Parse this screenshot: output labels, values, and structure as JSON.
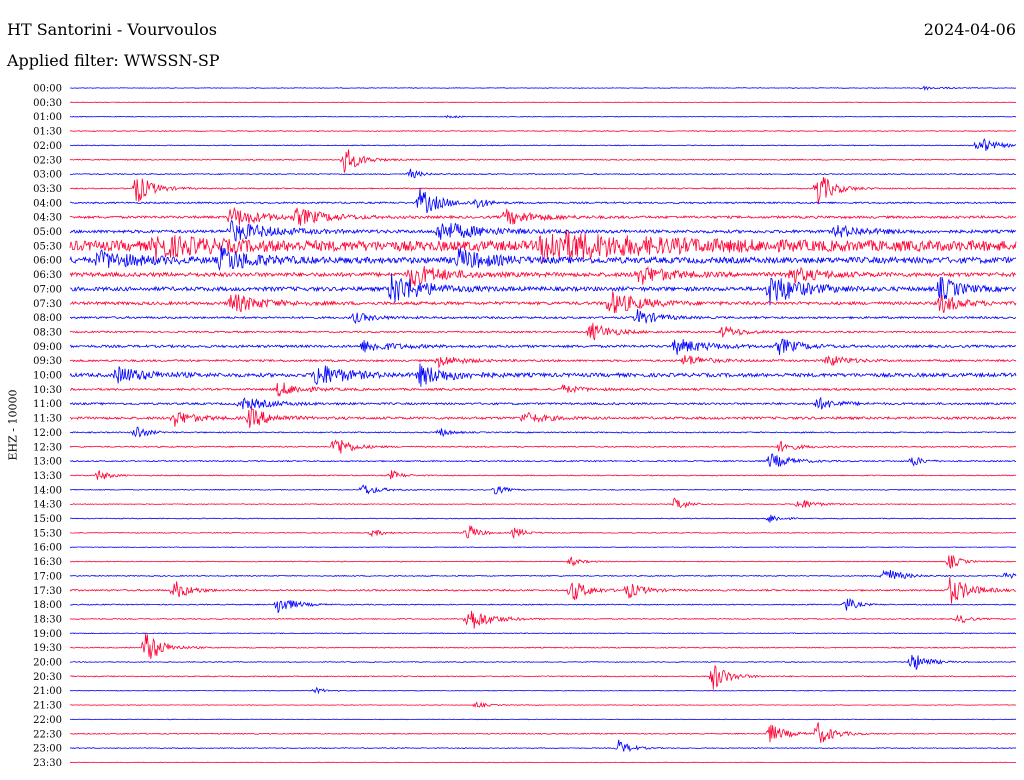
{
  "header": {
    "title": "HT Santorini - Vourvoulos",
    "date": "2024-04-06",
    "filter": "Applied filter: WWSSN-SP"
  },
  "chart_data": {
    "type": "line",
    "title": "HT Santorini - Vourvoulos",
    "ylabel": "EHZ - 10000",
    "colors": {
      "odd": "#0000ff",
      "even": "#ff0033"
    },
    "rows": [
      {
        "label": "00:00",
        "noise": 0.3,
        "events": [
          {
            "x": 0.9,
            "a": 2,
            "w": 0.02
          }
        ]
      },
      {
        "label": "00:30",
        "noise": 0.3,
        "events": []
      },
      {
        "label": "01:00",
        "noise": 0.3,
        "events": [
          {
            "x": 0.4,
            "a": 1.5,
            "w": 0.01
          }
        ]
      },
      {
        "label": "01:30",
        "noise": 0.4,
        "events": []
      },
      {
        "label": "02:00",
        "noise": 0.4,
        "events": [
          {
            "x": 0.96,
            "a": 10,
            "w": 0.015
          }
        ]
      },
      {
        "label": "02:30",
        "noise": 0.5,
        "events": [
          {
            "x": 0.29,
            "a": 14,
            "w": 0.015
          }
        ]
      },
      {
        "label": "03:00",
        "noise": 0.5,
        "events": [
          {
            "x": 0.36,
            "a": 5,
            "w": 0.01
          }
        ]
      },
      {
        "label": "03:30",
        "noise": 0.6,
        "events": [
          {
            "x": 0.07,
            "a": 16,
            "w": 0.015
          },
          {
            "x": 0.79,
            "a": 18,
            "w": 0.015
          }
        ]
      },
      {
        "label": "04:00",
        "noise": 0.8,
        "events": [
          {
            "x": 0.37,
            "a": 14,
            "w": 0.02
          },
          {
            "x": 0.43,
            "a": 6,
            "w": 0.01
          }
        ]
      },
      {
        "label": "04:30",
        "noise": 1.2,
        "events": [
          {
            "x": 0.17,
            "a": 10,
            "w": 0.03
          },
          {
            "x": 0.24,
            "a": 8,
            "w": 0.03
          },
          {
            "x": 0.46,
            "a": 8,
            "w": 0.03
          }
        ]
      },
      {
        "label": "05:00",
        "noise": 1.5,
        "events": [
          {
            "x": 0.17,
            "a": 10,
            "w": 0.04
          },
          {
            "x": 0.39,
            "a": 10,
            "w": 0.04
          },
          {
            "x": 0.81,
            "a": 6,
            "w": 0.03
          }
        ]
      },
      {
        "label": "05:30",
        "noise": 5,
        "events": [
          {
            "x": 0.09,
            "a": 10,
            "w": 0.05
          },
          {
            "x": 0.5,
            "a": 14,
            "w": 0.1
          }
        ]
      },
      {
        "label": "06:00",
        "noise": 3,
        "events": [
          {
            "x": 0.03,
            "a": 8,
            "w": 0.04
          },
          {
            "x": 0.16,
            "a": 12,
            "w": 0.03
          },
          {
            "x": 0.41,
            "a": 10,
            "w": 0.03
          }
        ]
      },
      {
        "label": "06:30",
        "noise": 2,
        "events": [
          {
            "x": 0.36,
            "a": 12,
            "w": 0.03
          },
          {
            "x": 0.6,
            "a": 10,
            "w": 0.03
          },
          {
            "x": 0.76,
            "a": 8,
            "w": 0.03
          }
        ]
      },
      {
        "label": "07:00",
        "noise": 2,
        "events": [
          {
            "x": 0.34,
            "a": 16,
            "w": 0.03
          },
          {
            "x": 0.74,
            "a": 16,
            "w": 0.03
          },
          {
            "x": 0.92,
            "a": 12,
            "w": 0.02
          }
        ]
      },
      {
        "label": "07:30",
        "noise": 1.5,
        "events": [
          {
            "x": 0.17,
            "a": 10,
            "w": 0.03
          },
          {
            "x": 0.57,
            "a": 12,
            "w": 0.03
          },
          {
            "x": 0.92,
            "a": 10,
            "w": 0.02
          }
        ]
      },
      {
        "label": "08:00",
        "noise": 1,
        "events": [
          {
            "x": 0.3,
            "a": 5,
            "w": 0.02
          },
          {
            "x": 0.6,
            "a": 8,
            "w": 0.02
          }
        ]
      },
      {
        "label": "08:30",
        "noise": 0.8,
        "events": [
          {
            "x": 0.55,
            "a": 10,
            "w": 0.02
          },
          {
            "x": 0.69,
            "a": 6,
            "w": 0.02
          }
        ]
      },
      {
        "label": "09:00",
        "noise": 1.2,
        "events": [
          {
            "x": 0.31,
            "a": 6,
            "w": 0.03
          },
          {
            "x": 0.64,
            "a": 8,
            "w": 0.03
          },
          {
            "x": 0.75,
            "a": 8,
            "w": 0.02
          }
        ]
      },
      {
        "label": "09:30",
        "noise": 1,
        "events": [
          {
            "x": 0.39,
            "a": 6,
            "w": 0.02
          },
          {
            "x": 0.65,
            "a": 6,
            "w": 0.02
          },
          {
            "x": 0.8,
            "a": 6,
            "w": 0.02
          }
        ]
      },
      {
        "label": "10:00",
        "noise": 1.8,
        "events": [
          {
            "x": 0.26,
            "a": 12,
            "w": 0.03
          },
          {
            "x": 0.37,
            "a": 10,
            "w": 0.03
          },
          {
            "x": 0.05,
            "a": 8,
            "w": 0.03
          }
        ]
      },
      {
        "label": "10:30",
        "noise": 1,
        "events": [
          {
            "x": 0.22,
            "a": 8,
            "w": 0.02
          },
          {
            "x": 0.52,
            "a": 4,
            "w": 0.02
          }
        ]
      },
      {
        "label": "11:00",
        "noise": 1,
        "events": [
          {
            "x": 0.18,
            "a": 6,
            "w": 0.03
          },
          {
            "x": 0.79,
            "a": 6,
            "w": 0.02
          }
        ]
      },
      {
        "label": "11:30",
        "noise": 1.2,
        "events": [
          {
            "x": 0.11,
            "a": 8,
            "w": 0.02
          },
          {
            "x": 0.19,
            "a": 10,
            "w": 0.02
          },
          {
            "x": 0.48,
            "a": 6,
            "w": 0.02
          }
        ]
      },
      {
        "label": "12:00",
        "noise": 0.6,
        "events": [
          {
            "x": 0.07,
            "a": 8,
            "w": 0.01
          },
          {
            "x": 0.39,
            "a": 5,
            "w": 0.01
          }
        ]
      },
      {
        "label": "12:30",
        "noise": 0.6,
        "events": [
          {
            "x": 0.28,
            "a": 12,
            "w": 0.015
          },
          {
            "x": 0.75,
            "a": 6,
            "w": 0.015
          }
        ]
      },
      {
        "label": "13:00",
        "noise": 0.6,
        "events": [
          {
            "x": 0.74,
            "a": 8,
            "w": 0.02
          },
          {
            "x": 0.89,
            "a": 6,
            "w": 0.01
          }
        ]
      },
      {
        "label": "13:30",
        "noise": 0.5,
        "events": [
          {
            "x": 0.03,
            "a": 6,
            "w": 0.01
          },
          {
            "x": 0.34,
            "a": 5,
            "w": 0.01
          }
        ]
      },
      {
        "label": "14:00",
        "noise": 0.4,
        "events": [
          {
            "x": 0.31,
            "a": 6,
            "w": 0.015
          },
          {
            "x": 0.45,
            "a": 5,
            "w": 0.01
          }
        ]
      },
      {
        "label": "14:30",
        "noise": 0.4,
        "events": [
          {
            "x": 0.64,
            "a": 8,
            "w": 0.01
          },
          {
            "x": 0.77,
            "a": 6,
            "w": 0.015
          }
        ]
      },
      {
        "label": "15:00",
        "noise": 0.4,
        "events": [
          {
            "x": 0.74,
            "a": 5,
            "w": 0.01
          }
        ]
      },
      {
        "label": "15:30",
        "noise": 0.4,
        "events": [
          {
            "x": 0.42,
            "a": 10,
            "w": 0.01
          },
          {
            "x": 0.47,
            "a": 6,
            "w": 0.01
          },
          {
            "x": 0.32,
            "a": 4,
            "w": 0.01
          }
        ]
      },
      {
        "label": "16:00",
        "noise": 0.3,
        "events": []
      },
      {
        "label": "16:30",
        "noise": 0.4,
        "events": [
          {
            "x": 0.53,
            "a": 4,
            "w": 0.01
          },
          {
            "x": 0.93,
            "a": 8,
            "w": 0.01
          }
        ]
      },
      {
        "label": "17:00",
        "noise": 0.5,
        "events": [
          {
            "x": 0.86,
            "a": 10,
            "w": 0.015
          },
          {
            "x": 0.99,
            "a": 6,
            "w": 0.01
          }
        ]
      },
      {
        "label": "17:30",
        "noise": 0.8,
        "events": [
          {
            "x": 0.11,
            "a": 10,
            "w": 0.015
          },
          {
            "x": 0.53,
            "a": 12,
            "w": 0.015
          },
          {
            "x": 0.59,
            "a": 8,
            "w": 0.015
          },
          {
            "x": 0.93,
            "a": 14,
            "w": 0.02
          }
        ]
      },
      {
        "label": "18:00",
        "noise": 0.5,
        "events": [
          {
            "x": 0.22,
            "a": 10,
            "w": 0.015
          },
          {
            "x": 0.82,
            "a": 8,
            "w": 0.01
          }
        ]
      },
      {
        "label": "18:30",
        "noise": 0.5,
        "events": [
          {
            "x": 0.42,
            "a": 14,
            "w": 0.02
          },
          {
            "x": 0.94,
            "a": 5,
            "w": 0.01
          }
        ]
      },
      {
        "label": "19:00",
        "noise": 0.4,
        "events": []
      },
      {
        "label": "19:30",
        "noise": 0.5,
        "events": [
          {
            "x": 0.08,
            "a": 18,
            "w": 0.015
          }
        ]
      },
      {
        "label": "20:00",
        "noise": 0.4,
        "events": [
          {
            "x": 0.89,
            "a": 10,
            "w": 0.015
          }
        ]
      },
      {
        "label": "20:30",
        "noise": 0.5,
        "events": [
          {
            "x": 0.68,
            "a": 14,
            "w": 0.015
          }
        ]
      },
      {
        "label": "21:00",
        "noise": 0.3,
        "events": [
          {
            "x": 0.26,
            "a": 3,
            "w": 0.01
          }
        ]
      },
      {
        "label": "21:30",
        "noise": 0.3,
        "events": [
          {
            "x": 0.43,
            "a": 3,
            "w": 0.01
          }
        ]
      },
      {
        "label": "22:00",
        "noise": 0.3,
        "events": []
      },
      {
        "label": "22:30",
        "noise": 0.5,
        "events": [
          {
            "x": 0.74,
            "a": 10,
            "w": 0.015
          },
          {
            "x": 0.79,
            "a": 12,
            "w": 0.015
          }
        ]
      },
      {
        "label": "23:00",
        "noise": 0.4,
        "events": [
          {
            "x": 0.58,
            "a": 8,
            "w": 0.012
          }
        ]
      },
      {
        "label": "23:30",
        "noise": 0.3,
        "events": []
      }
    ]
  }
}
